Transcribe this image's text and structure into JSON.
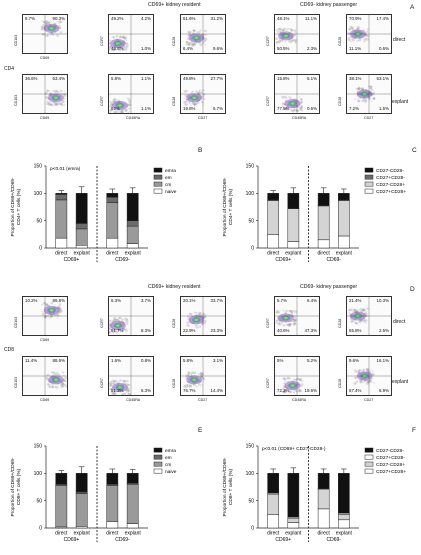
{
  "panel_letters": [
    "A",
    "B",
    "C",
    "D",
    "E",
    "F"
  ],
  "headers": {
    "a_resident": "CD69+ kidney resident",
    "a_passenger": "CD69- kidney passenger",
    "d_resident": "CD69+ kidney resident",
    "d_passenger": "CD69- kidney passenger"
  },
  "row_labels": {
    "direct": "direct",
    "explant": "explant"
  },
  "side_labels": {
    "cd4": "CD4",
    "cd8": "CD8"
  },
  "axis_labels": {
    "cd103": "CD103",
    "cd69": "CD69",
    "ccr7": "CCR7",
    "cd45ra": "CD45RA",
    "cd28": "CD28",
    "cd27": "CD27"
  },
  "quadrants": {
    "A": [
      [
        "9.7%",
        "90.3%",
        "36.6%",
        "63.4%"
      ],
      [
        "49.2%",
        "4.2%",
        "45.6%",
        "1.0%"
      ],
      [
        "51.6%",
        "31.2%",
        "6.4%",
        "9.6%"
      ],
      [
        "48.1%",
        "11.1%",
        "50.5%",
        "2.3%"
      ],
      [
        "70.9%",
        "17.4%",
        "11.1%",
        "0.6%"
      ],
      [
        "5.8%",
        "1.1%",
        "92%",
        "1.1%"
      ],
      [
        "49.8%",
        "27.7%",
        "19.8%",
        "6.7%"
      ],
      [
        "15.8%",
        "6.1%",
        "77.5%",
        "0.6%"
      ],
      [
        "38.1%",
        "53.1%",
        "7.2%",
        "1.5%"
      ]
    ],
    "D": [
      [
        "10.2%",
        "89.8%",
        "11.4%",
        "88.6%"
      ],
      [
        "6.3%",
        "3.7%",
        "81.7%",
        "8.3%"
      ],
      [
        "20.1%",
        "33.7%",
        "22.9%",
        "23.3%"
      ],
      [
        "5.7%",
        "6.4%",
        "40.6%",
        "47.3%"
      ],
      [
        "21.4%",
        "10.3%",
        "65.8%",
        "2.5%"
      ],
      [
        "1.6%",
        "0.8%",
        "91.3%",
        "6.3%"
      ],
      [
        "5.8%",
        "3.1%",
        "76.7%",
        "14.4%"
      ],
      [
        "5%",
        "5.2%",
        "72.2%",
        "19.6%"
      ],
      [
        "9.6%",
        "16.1%",
        "67.4%",
        "6.9%"
      ]
    ]
  },
  "chart_data": [
    {
      "type": "bar",
      "panel": "B",
      "annotation": "p<0.01 (emra)",
      "ylabel": "Proportion of CD69+/CD69-\nCD4+ T cells (%)",
      "ylim": [
        0,
        150
      ],
      "yticks": [
        "0",
        "50",
        "100",
        "150"
      ],
      "categories": [
        "direct",
        "explant",
        "direct",
        "explant"
      ],
      "groups": [
        "CD69+",
        "CD69-"
      ],
      "series": [
        {
          "name": "naive",
          "values": [
            18,
            5,
            18,
            8
          ]
        },
        {
          "name": "cm",
          "values": [
            70,
            30,
            65,
            32
          ]
        },
        {
          "name": "em",
          "values": [
            10,
            10,
            10,
            10
          ]
        },
        {
          "name": "emra",
          "values": [
            2,
            55,
            7,
            50
          ]
        }
      ],
      "errors": [
        5,
        12,
        8,
        10
      ],
      "colors": {
        "emra": "#111111",
        "em": "#6b6b6b",
        "cm": "#9a9a9a",
        "naive": "#ffffff"
      }
    },
    {
      "type": "bar",
      "panel": "C",
      "ylabel": "Proportion of CD69+/CD69-\nCD4+ T cells (%)",
      "ylim": [
        0,
        150
      ],
      "yticks": [
        "0",
        "50",
        "100",
        "150"
      ],
      "categories": [
        "direct",
        "explant",
        "direct",
        "explant"
      ],
      "groups": [
        "CD69+",
        "CD69-"
      ],
      "series": [
        {
          "name": "CD27+CD28+",
          "values": [
            25,
            12,
            15,
            22
          ]
        },
        {
          "name": "CD27-CD28+",
          "values": [
            62,
            60,
            62,
            65
          ]
        },
        {
          "name": "CD27+CD28-",
          "values": [
            1,
            1,
            1,
            1
          ]
        },
        {
          "name": "CD27-CD28-",
          "values": [
            12,
            27,
            22,
            12
          ]
        }
      ],
      "errors": [
        5,
        10,
        10,
        8
      ],
      "colors": {
        "CD27-CD28-": "#111111",
        "CD27+CD28-": "#6b6b6b",
        "CD27-CD28+": "#d4d4d4",
        "CD27+CD28+": "#ffffff"
      }
    },
    {
      "type": "bar",
      "panel": "E",
      "ylabel": "Proportion of CD69+/CD69-\nCD8+ T cells (%)",
      "ylim": [
        0,
        150
      ],
      "yticks": [
        "0",
        "50",
        "100",
        "150"
      ],
      "categories": [
        "direct",
        "explant",
        "direct",
        "explant"
      ],
      "groups": [
        "CD69+",
        "CD69-"
      ],
      "series": [
        {
          "name": "naive",
          "values": [
            2,
            3,
            12,
            8
          ]
        },
        {
          "name": "cm",
          "values": [
            76,
            60,
            66,
            72
          ]
        },
        {
          "name": "em",
          "values": [
            2,
            3,
            2,
            2
          ]
        },
        {
          "name": "emra",
          "values": [
            20,
            34,
            20,
            18
          ]
        }
      ],
      "errors": [
        5,
        12,
        8,
        7
      ],
      "colors": {
        "emra": "#111111",
        "em": "#6b6b6b",
        "cm": "#9a9a9a",
        "naive": "#ffffff"
      }
    },
    {
      "type": "bar",
      "panel": "F",
      "annotation": "p<0.01 (CD69+ CD27-CD28-)",
      "ylabel": "Proportion of CD69+/CD69-\nCD8+ T cells (%)",
      "ylim": [
        0,
        150
      ],
      "yticks": [
        "0",
        "50",
        "100",
        "150"
      ],
      "categories": [
        "direct",
        "explant",
        "direct",
        "explant"
      ],
      "groups": [
        "CD69+",
        "CD69-"
      ],
      "series": [
        {
          "name": "CD27+CD28+",
          "values": [
            25,
            10,
            35,
            15
          ]
        },
        {
          "name": "CD27-CD28+",
          "values": [
            37,
            8,
            35,
            10
          ]
        },
        {
          "name": "CD27+CD28-",
          "values": [
            2,
            2,
            2,
            2
          ]
        },
        {
          "name": "CD27-CD28-",
          "values": [
            36,
            80,
            28,
            73
          ]
        }
      ],
      "errors": [
        8,
        10,
        8,
        8
      ],
      "colors": {
        "CD27-CD28-": "#111111",
        "CD27+CD28-": "#ffffff",
        "CD27-CD28+": "#d4d4d4",
        "CD27+CD28+": "#ffffff"
      }
    }
  ]
}
